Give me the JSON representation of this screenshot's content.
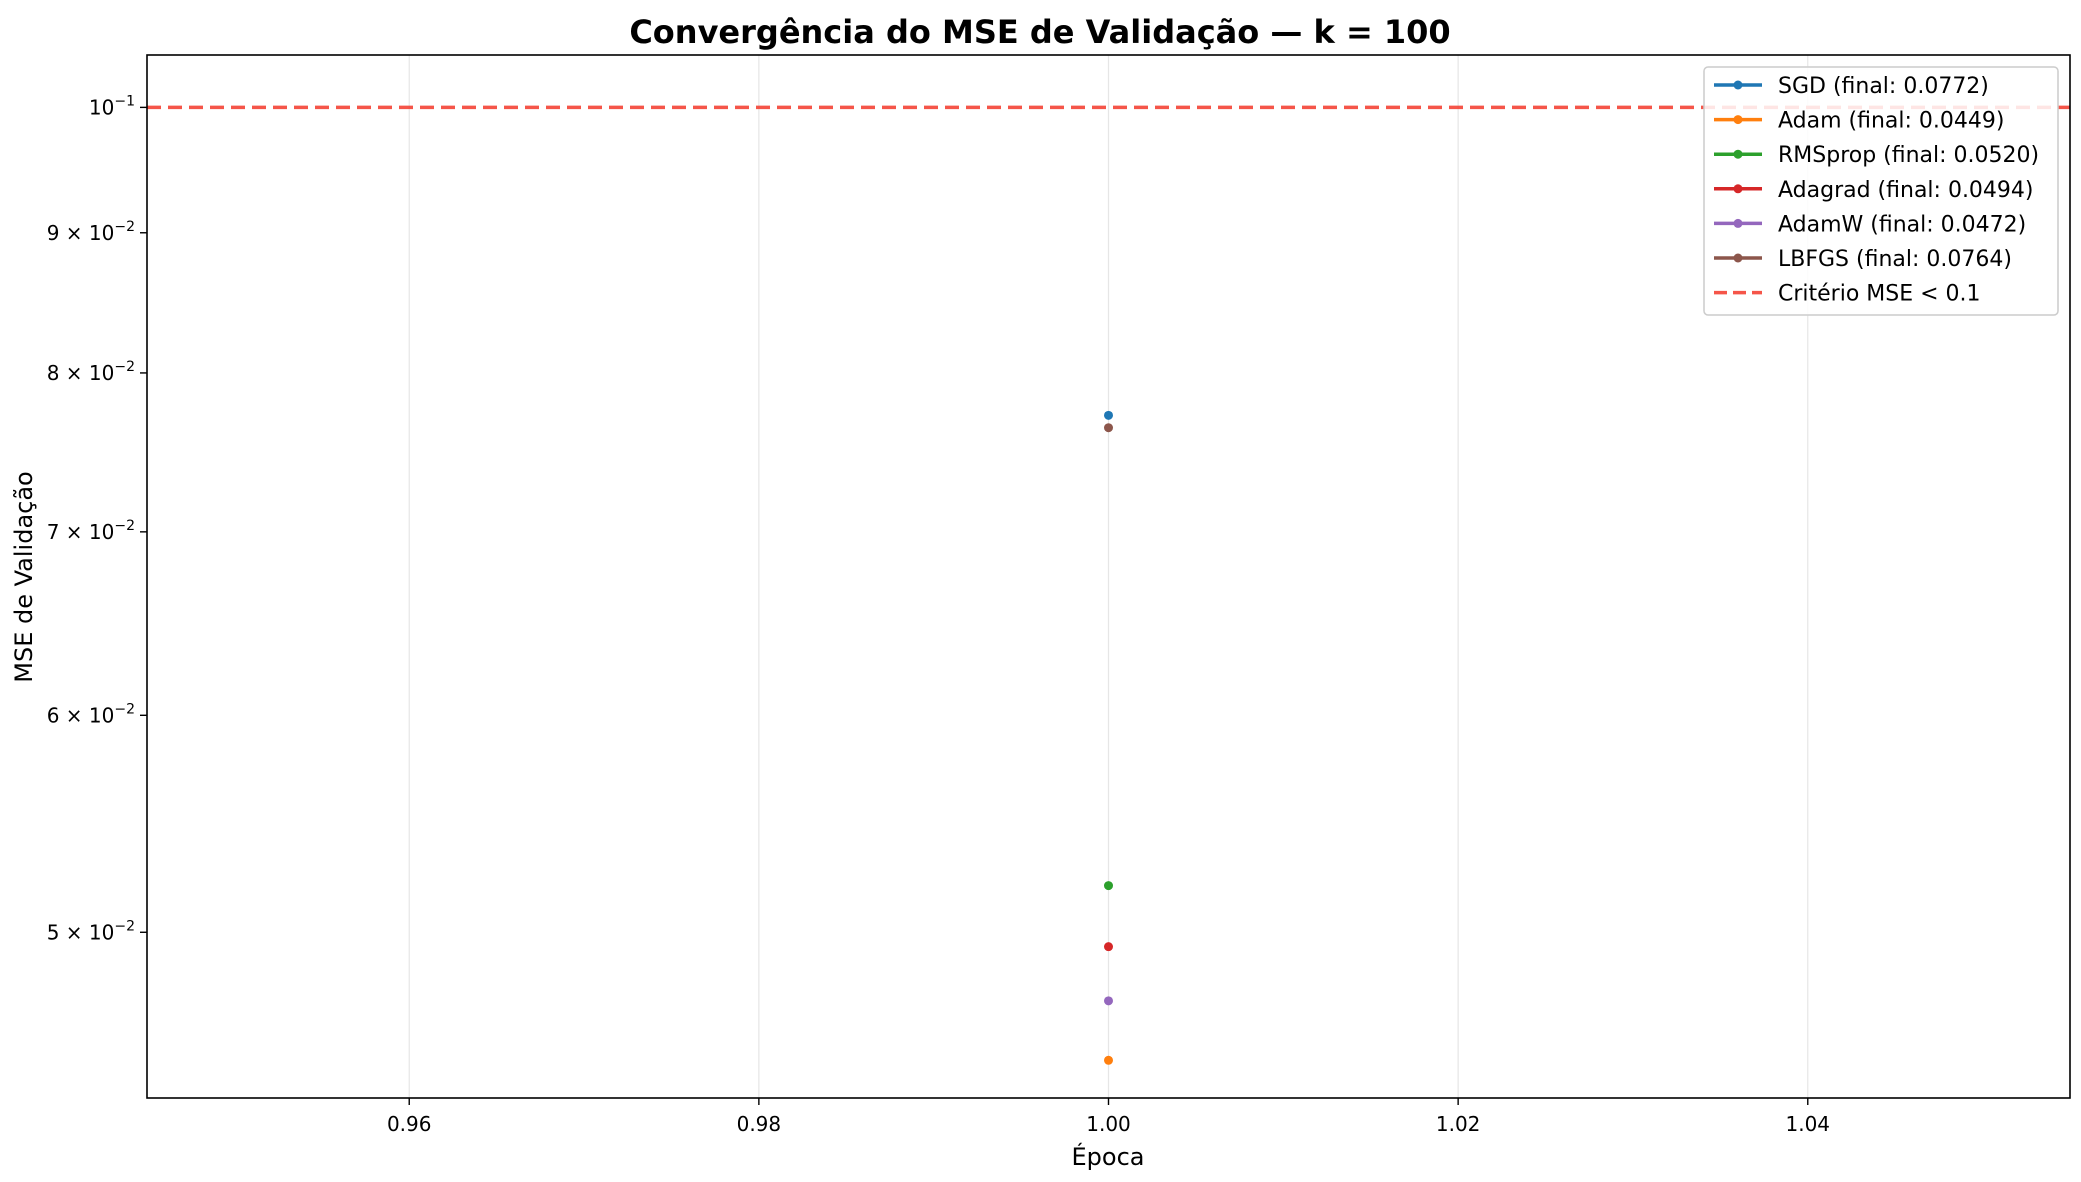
{
  "chart_data": {
    "type": "line",
    "title": "Convergência do MSE de Validação — k = 100",
    "xlabel": "Época",
    "ylabel": "MSE de Validação",
    "xlim": [
      0.945,
      1.055
    ],
    "ylim": [
      0.0435,
      0.1045
    ],
    "yscale": "log",
    "grid": true,
    "legend_position": "top-right",
    "x_ticks": [
      0.96,
      0.98,
      1.0,
      1.02,
      1.04
    ],
    "x_tick_labels": [
      "0.96",
      "0.98",
      "1.00",
      "1.02",
      "1.04"
    ],
    "y_ticks": [
      {
        "value": 0.1,
        "base": "10",
        "exp": "−1"
      },
      {
        "value": 0.09,
        "mant": "9 × 10",
        "exp": "−2"
      },
      {
        "value": 0.08,
        "mant": "8 × 10",
        "exp": "−2"
      },
      {
        "value": 0.07,
        "mant": "7 × 10",
        "exp": "−2"
      },
      {
        "value": 0.06,
        "mant": "6 × 10",
        "exp": "−2"
      },
      {
        "value": 0.05,
        "mant": "5 × 10",
        "exp": "−2"
      }
    ],
    "series": [
      {
        "name": "SGD (final: 0.0772)",
        "color": "#1f77b4",
        "x": [
          1.0
        ],
        "y": [
          0.0772
        ]
      },
      {
        "name": "Adam (final: 0.0449)",
        "color": "#ff7f0e",
        "x": [
          1.0
        ],
        "y": [
          0.0449
        ]
      },
      {
        "name": "RMSprop (final: 0.0520)",
        "color": "#2ca02c",
        "x": [
          1.0
        ],
        "y": [
          0.052
        ]
      },
      {
        "name": "Adagrad (final: 0.0494)",
        "color": "#d62728",
        "x": [
          1.0
        ],
        "y": [
          0.0494
        ]
      },
      {
        "name": "AdamW (final: 0.0472)",
        "color": "#9467bd",
        "x": [
          1.0
        ],
        "y": [
          0.0472
        ]
      },
      {
        "name": "LBFGS (final: 0.0764)",
        "color": "#8c564b",
        "x": [
          1.0
        ],
        "y": [
          0.0764
        ]
      }
    ],
    "threshold": {
      "name": "Critério MSE < 0.1",
      "value": 0.1,
      "color": "#f44336",
      "style": "dashed"
    }
  }
}
